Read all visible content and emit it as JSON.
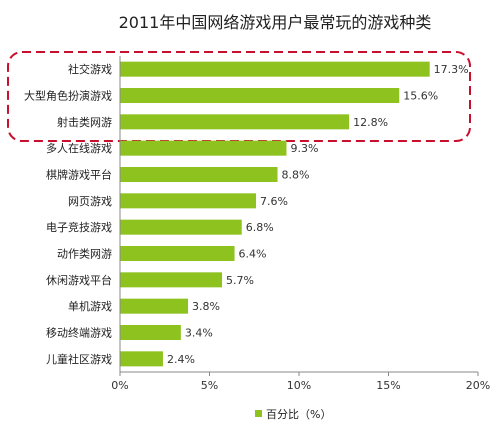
{
  "chart_data": {
    "type": "bar",
    "orientation": "horizontal",
    "title": "2011年中国网络游戏用户最常玩的游戏种类",
    "categories": [
      "社交游戏",
      "大型角色扮演游戏",
      "射击类网游",
      "多人在线游戏",
      "棋牌游戏平台",
      "网页游戏",
      "电子竞技游戏",
      "动作类网游",
      "休闲游戏平台",
      "单机游戏",
      "移动终端游戏",
      "儿童社区游戏"
    ],
    "values": [
      17.3,
      15.6,
      12.8,
      9.3,
      8.8,
      7.6,
      6.8,
      6.4,
      5.7,
      3.8,
      3.4,
      2.4
    ],
    "value_labels": [
      "17.3%",
      "15.6%",
      "12.8%",
      "9.3%",
      "8.8%",
      "7.6%",
      "6.8%",
      "6.4%",
      "5.7%",
      "3.8%",
      "3.4%",
      "2.4%"
    ],
    "x_ticks": [
      0,
      5,
      10,
      15,
      20
    ],
    "x_tick_labels": [
      "0%",
      "5%",
      "10%",
      "15%",
      "20%"
    ],
    "xlim": [
      0,
      20
    ],
    "series": [
      {
        "name": "百分比（%）",
        "color": "#8dc21f"
      }
    ],
    "legend_position": "bottom",
    "highlight": {
      "categories": [
        "社交游戏",
        "大型角色扮演游戏",
        "射击类网游"
      ],
      "style": "red dashed rounded box",
      "color": "#c8102e"
    },
    "grid": false
  }
}
